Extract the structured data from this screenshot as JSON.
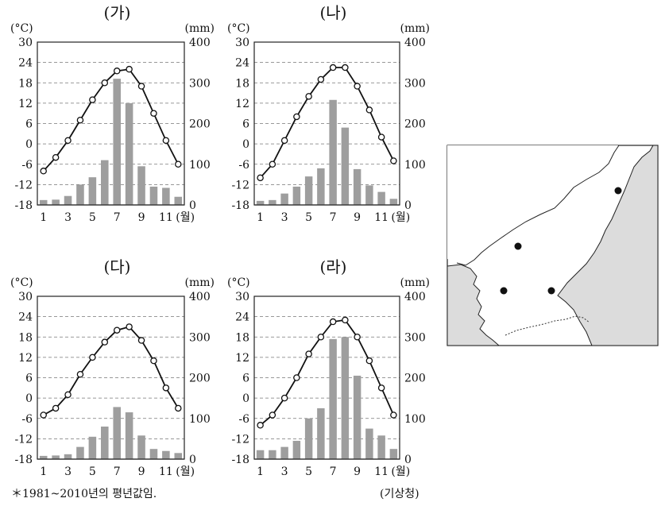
{
  "axis_labels": {
    "temp_unit": "(°C)",
    "precip_unit": "(mm)",
    "month_unit": "(월)"
  },
  "footnote": "＊1981~2010년의 평년값임.",
  "source": "(기상청)",
  "colors": {
    "bar": "#9e9e9e",
    "line": "#111111",
    "grid": "#777777",
    "map_land": "#ffffff",
    "map_sea_neighbor": "#dcdcdc"
  },
  "chart_data": [
    {
      "type": "bar+line",
      "title": "(가)",
      "months": [
        1,
        2,
        3,
        4,
        5,
        6,
        7,
        8,
        9,
        10,
        11,
        12
      ],
      "month_ticks": [
        "1",
        "3",
        "5",
        "7",
        "9",
        "11"
      ],
      "temperature": [
        -8,
        -4,
        1,
        7,
        13,
        18,
        21.5,
        22,
        17,
        9,
        1,
        -6
      ],
      "precipitation": [
        12,
        13,
        22,
        50,
        68,
        110,
        310,
        250,
        95,
        45,
        42,
        20
      ],
      "temp_ticks": [
        30,
        24,
        18,
        12,
        6,
        0,
        -6,
        -12,
        -18
      ],
      "precip_ticks": [
        400,
        300,
        200,
        100,
        0
      ],
      "temp_range": [
        -18,
        30
      ],
      "precip_range": [
        0,
        400
      ],
      "grid": true
    },
    {
      "type": "bar+line",
      "title": "(나)",
      "months": [
        1,
        2,
        3,
        4,
        5,
        6,
        7,
        8,
        9,
        10,
        11,
        12
      ],
      "month_ticks": [
        "1",
        "3",
        "5",
        "7",
        "9",
        "11"
      ],
      "temperature": [
        -10,
        -6,
        1,
        8,
        14,
        19,
        22.5,
        22.5,
        17,
        10,
        2,
        -5
      ],
      "precipitation": [
        10,
        12,
        28,
        45,
        70,
        90,
        258,
        190,
        88,
        48,
        32,
        15
      ],
      "temp_ticks": [
        30,
        24,
        18,
        12,
        6,
        0,
        -6,
        -12,
        -18
      ],
      "precip_ticks": [
        400,
        300,
        200,
        100,
        0
      ],
      "temp_range": [
        -18,
        30
      ],
      "precip_range": [
        0,
        400
      ],
      "grid": true
    },
    {
      "type": "bar+line",
      "title": "(다)",
      "months": [
        1,
        2,
        3,
        4,
        5,
        6,
        7,
        8,
        9,
        10,
        11,
        12
      ],
      "month_ticks": [
        "1",
        "3",
        "5",
        "7",
        "9",
        "11"
      ],
      "temperature": [
        -5,
        -3,
        1,
        7,
        12,
        16.5,
        20,
        21,
        17,
        11,
        3,
        -3
      ],
      "precipitation": [
        8,
        9,
        12,
        30,
        55,
        80,
        128,
        115,
        58,
        25,
        20,
        15
      ],
      "temp_ticks": [
        30,
        24,
        18,
        12,
        6,
        0,
        -6,
        -12,
        -18
      ],
      "precip_ticks": [
        400,
        300,
        200,
        100,
        0
      ],
      "temp_range": [
        -18,
        30
      ],
      "precip_range": [
        0,
        400
      ],
      "grid": true
    },
    {
      "type": "bar+line",
      "title": "(라)",
      "months": [
        1,
        2,
        3,
        4,
        5,
        6,
        7,
        8,
        9,
        10,
        11,
        12
      ],
      "month_ticks": [
        "1",
        "3",
        "5",
        "7",
        "9",
        "11"
      ],
      "temperature": [
        -8,
        -5,
        0,
        6,
        13,
        18,
        22.5,
        23,
        18,
        11,
        3,
        -5
      ],
      "precipitation": [
        22,
        22,
        30,
        45,
        100,
        125,
        295,
        300,
        205,
        75,
        58,
        25
      ],
      "temp_ticks": [
        30,
        24,
        18,
        12,
        6,
        0,
        -6,
        -12,
        -18
      ],
      "precip_ticks": [
        400,
        300,
        200,
        100,
        0
      ],
      "temp_range": [
        -18,
        30
      ],
      "precip_range": [
        0,
        400
      ],
      "grid": true
    }
  ],
  "map": {
    "markers": 4
  }
}
